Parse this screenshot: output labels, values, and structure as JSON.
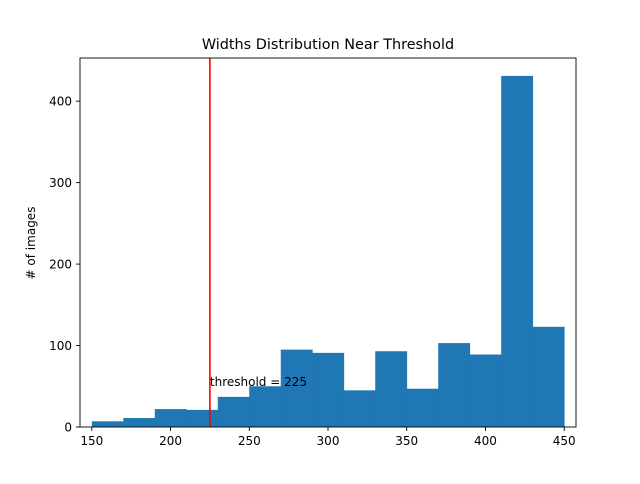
{
  "chart_data": {
    "type": "bar",
    "title": "Widths Distribution Near Threshold",
    "xlabel": "",
    "ylabel": "# of images",
    "xlim": [
      142.5,
      457.5
    ],
    "ylim": [
      0,
      453
    ],
    "x_ticks": [
      150,
      200,
      250,
      300,
      350,
      400,
      450
    ],
    "y_ticks": [
      0,
      100,
      200,
      300,
      400
    ],
    "bin_edges": [
      150,
      170,
      190,
      210,
      230,
      250,
      270,
      290,
      310,
      330,
      350,
      370,
      390,
      410,
      430,
      450
    ],
    "values": [
      7,
      11,
      22,
      21,
      37,
      50,
      95,
      91,
      45,
      93,
      47,
      103,
      89,
      431,
      123
    ],
    "bar_color": "#1f77b4",
    "threshold": {
      "x": 225,
      "label": "threshold = 225",
      "color": "#ff0000",
      "label_y": 55
    },
    "grid": false,
    "legend": "none"
  }
}
